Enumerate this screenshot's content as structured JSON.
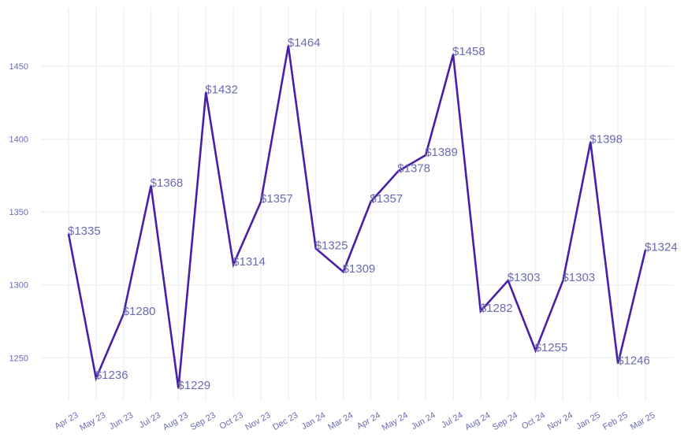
{
  "chart_data": {
    "type": "line",
    "title": "",
    "xlabel": "",
    "ylabel": "",
    "categories": [
      "Apr 23",
      "May 23",
      "Jun 23",
      "Jul 23",
      "Aug 23",
      "Sep 23",
      "Oct 23",
      "Nov 23",
      "Dec 23",
      "Jan 24",
      "Mar 24",
      "Apr 24",
      "May 24",
      "Jun 24",
      "Jul 24",
      "Aug 24",
      "Sep 24",
      "Oct 24",
      "Nov 24",
      "Jan 25",
      "Feb 25",
      "Mar 25"
    ],
    "values": [
      1335,
      1236,
      1280,
      1368,
      1229,
      1432,
      1314,
      1357,
      1464,
      1325,
      1309,
      1357,
      1378,
      1389,
      1458,
      1282,
      1303,
      1255,
      1303,
      1398,
      1246,
      1324
    ],
    "data_labels": [
      "$1335",
      "$1236",
      "$1280",
      "$1368",
      "$1229",
      "$1432",
      "$1314",
      "$1357",
      "$1464",
      "$1325",
      "$1309",
      "$1357",
      "$1378",
      "$1389",
      "$1458",
      "$1282",
      "$1303",
      "$1255",
      "$1303",
      "$1398",
      "$1246",
      "$1324"
    ],
    "y_ticks": [
      1250,
      1300,
      1350,
      1400,
      1450
    ],
    "ylim": [
      1221,
      1490
    ],
    "grid": true,
    "line_color": "#4a1fa8",
    "label_color": "#6b6bb0"
  }
}
